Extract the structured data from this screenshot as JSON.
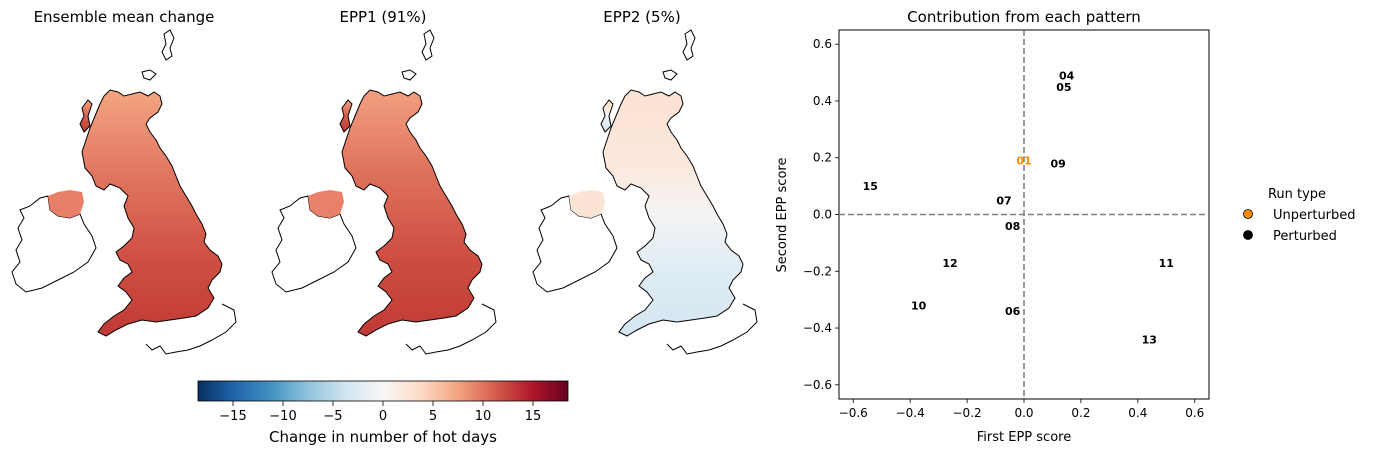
{
  "maps": {
    "panels": [
      {
        "title": "Ensemble mean change",
        "variant": "mean"
      },
      {
        "title": "EPP1 (91%)",
        "variant": "epp1"
      },
      {
        "title": "EPP2 (5%)",
        "variant": "epp2"
      }
    ],
    "colorbar": {
      "label": "Change in number of hot days",
      "ticks": [
        -15,
        -10,
        -5,
        0,
        5,
        10,
        15
      ],
      "range": [
        -18.5,
        18.5
      ],
      "colormap": "RdBu_r"
    }
  },
  "chart_data": [
    {
      "type": "scatter",
      "title": "Contribution from each pattern",
      "xlabel": "First EPP score",
      "ylabel": "Second EPP score",
      "xlim": [
        -0.65,
        0.65
      ],
      "ylim": [
        -0.65,
        0.65
      ],
      "xticks": [
        -0.6,
        -0.4,
        -0.2,
        0.0,
        0.2,
        0.4,
        0.6
      ],
      "yticks": [
        -0.6,
        -0.4,
        -0.2,
        0.0,
        0.2,
        0.4,
        0.6
      ],
      "reference_lines": {
        "x": 0,
        "y": 0,
        "style": "dashed",
        "color": "#808080"
      },
      "points": [
        {
          "label": "01",
          "x": 0.0,
          "y": 0.19,
          "run_type": "Unperturbed"
        },
        {
          "label": "04",
          "x": 0.15,
          "y": 0.49,
          "run_type": "Perturbed"
        },
        {
          "label": "05",
          "x": 0.14,
          "y": 0.45,
          "run_type": "Perturbed"
        },
        {
          "label": "09",
          "x": 0.12,
          "y": 0.18,
          "run_type": "Perturbed"
        },
        {
          "label": "15",
          "x": -0.54,
          "y": 0.1,
          "run_type": "Perturbed"
        },
        {
          "label": "07",
          "x": -0.07,
          "y": 0.05,
          "run_type": "Perturbed"
        },
        {
          "label": "08",
          "x": -0.04,
          "y": -0.04,
          "run_type": "Perturbed"
        },
        {
          "label": "12",
          "x": -0.26,
          "y": -0.17,
          "run_type": "Perturbed"
        },
        {
          "label": "11",
          "x": 0.5,
          "y": -0.17,
          "run_type": "Perturbed"
        },
        {
          "label": "10",
          "x": -0.37,
          "y": -0.32,
          "run_type": "Perturbed"
        },
        {
          "label": "06",
          "x": -0.04,
          "y": -0.34,
          "run_type": "Perturbed"
        },
        {
          "label": "13",
          "x": 0.44,
          "y": -0.44,
          "run_type": "Perturbed"
        }
      ],
      "legend": {
        "title": "Run type",
        "placement": "right, outside",
        "entries": [
          {
            "name": "Unperturbed",
            "color": "#ff8c00"
          },
          {
            "name": "Perturbed",
            "color": "#000000"
          }
        ]
      }
    }
  ]
}
